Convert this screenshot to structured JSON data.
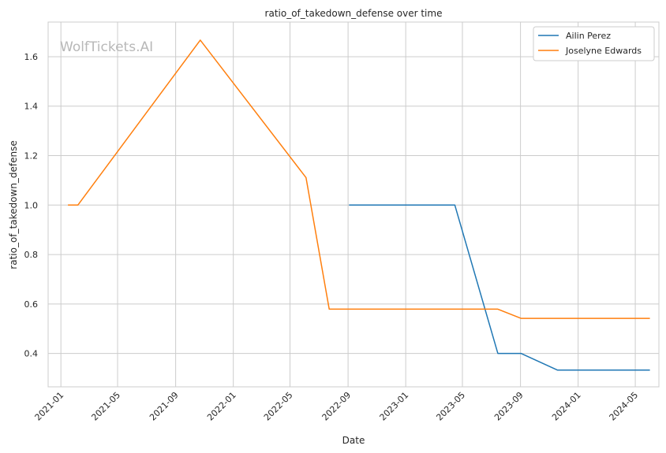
{
  "chart_data": {
    "type": "line",
    "title": "ratio_of_takedown_defense over time",
    "xlabel": "Date",
    "ylabel": "ratio_of_takedown_defense",
    "watermark": "WolfTickets.AI",
    "x_ticks": [
      "2021-01",
      "2021-05",
      "2021-09",
      "2022-01",
      "2022-05",
      "2022-09",
      "2023-01",
      "2023-05",
      "2023-09",
      "2024-01",
      "2024-05"
    ],
    "y_ticks": [
      "0.4",
      "0.6",
      "0.8",
      "1.0",
      "1.2",
      "1.4",
      "1.6"
    ],
    "xlim": [
      "2020-12-05",
      "2024-06-20"
    ],
    "ylim": [
      0.265,
      1.74
    ],
    "grid": true,
    "legend_position": "top-right",
    "series": [
      {
        "name": "Ailin Perez",
        "color": "#1f77b4",
        "points": [
          [
            "2022-09-03",
            1.0
          ],
          [
            "2023-04-15",
            1.0
          ],
          [
            "2023-07-15",
            0.4
          ],
          [
            "2023-09-02",
            0.4
          ],
          [
            "2023-11-18",
            0.333
          ],
          [
            "2024-06-01",
            0.333
          ]
        ]
      },
      {
        "name": "Joselyne Edwards",
        "color": "#ff7f0e",
        "points": [
          [
            "2021-01-16",
            1.0
          ],
          [
            "2021-02-06",
            1.0
          ],
          [
            "2021-10-23",
            1.667
          ],
          [
            "2022-06-04",
            1.111
          ],
          [
            "2022-07-23",
            0.579
          ],
          [
            "2023-07-15",
            0.579
          ],
          [
            "2023-09-02",
            0.542
          ],
          [
            "2024-06-01",
            0.542
          ]
        ]
      }
    ]
  }
}
